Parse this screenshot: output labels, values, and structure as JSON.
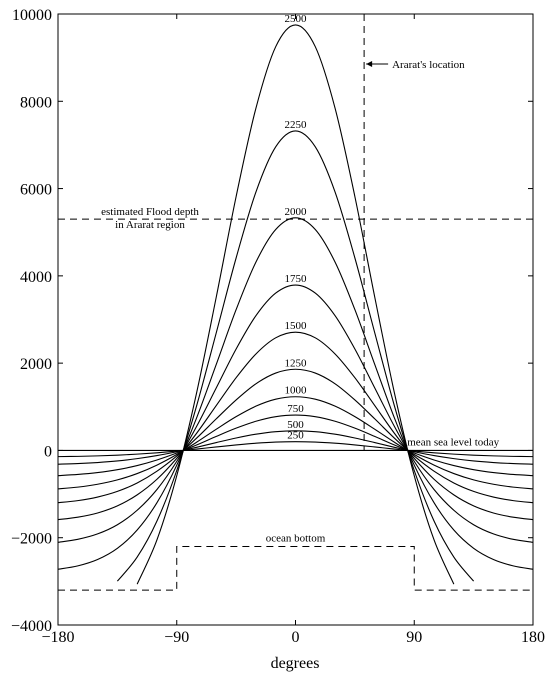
{
  "chart_data": {
    "type": "line",
    "xlabel": "degrees",
    "color": "#000000",
    "x": [
      -180,
      -165,
      -150,
      -135,
      -120,
      -105,
      -90,
      -75,
      -60,
      -45,
      -30,
      -15,
      0,
      15,
      30,
      45,
      60,
      75,
      90,
      105,
      120,
      135,
      150,
      165,
      180
    ],
    "series": [
      {
        "name": "250",
        "values": [
          -142,
          -136,
          -125,
          -109,
          -85,
          -54,
          -15,
          31,
          80,
          126,
          165,
          191,
          200,
          191,
          165,
          126,
          80,
          31,
          -15,
          -54,
          -85,
          -109,
          -125,
          -136,
          -142
        ]
      },
      {
        "name": "500",
        "values": [
          -315,
          -301,
          -277,
          -241,
          -188,
          -118,
          -30,
          72,
          181,
          285,
          372,
          430,
          450,
          430,
          372,
          285,
          181,
          72,
          -30,
          -118,
          -188,
          -241,
          -277,
          -301,
          -315
        ]
      },
      {
        "name": "750",
        "values": [
          -578,
          -551,
          -508,
          -442,
          -347,
          -219,
          -60,
          124,
          322,
          510,
          668,
          773,
          810,
          773,
          668,
          510,
          322,
          124,
          -60,
          -219,
          -347,
          -442,
          -508,
          -551,
          -578
        ]
      },
      {
        "name": "1000",
        "values": [
          -881,
          -841,
          -775,
          -675,
          -530,
          -336,
          -94,
          187,
          487,
          774,
          1014,
          1174,
          1230,
          1174,
          1014,
          774,
          487,
          187,
          -94,
          -336,
          -530,
          -675,
          -775,
          -841,
          -881
        ]
      },
      {
        "name": "1250",
        "values": [
          -1198,
          -1150,
          -1068,
          -939,
          -746,
          -476,
          -130,
          280,
          725,
          1157,
          1527,
          1773,
          1860,
          1773,
          1527,
          1157,
          725,
          280,
          -130,
          -476,
          -746,
          -939,
          -1068,
          -1150,
          -1198
        ]
      },
      {
        "name": "1500",
        "values": [
          -1586,
          -1530,
          -1433,
          -1270,
          -1018,
          -661,
          -183,
          391,
          1031,
          1666,
          2210,
          2580,
          2710,
          2580,
          2210,
          1666,
          1031,
          391,
          -183,
          -661,
          -1018,
          -1270,
          -1433,
          -1530,
          -1586
        ]
      },
      {
        "name": "1750",
        "values": [
          -2106,
          -2037,
          -1913,
          -1703,
          -1371,
          -895,
          -251,
          548,
          1436,
          2324,
          3087,
          3605,
          3790,
          3605,
          3087,
          2324,
          1436,
          548,
          -251,
          -895,
          -1371,
          -1703,
          -1913,
          -2037,
          -2106
        ]
      },
      {
        "name": "2000",
        "values": [
          -2723,
          -2645,
          -2499,
          -2242,
          -1824,
          -1198,
          -338,
          742,
          1976,
          3227,
          4315,
          5062,
          5330,
          5062,
          4315,
          3227,
          1976,
          742,
          -338,
          -1198,
          -1824,
          -2242,
          -2499,
          -2645,
          -2723
        ]
      },
      {
        "name": "2250",
        "values": [
          null,
          null,
          null,
          -2995,
          -2444,
          -1617,
          -460,
          1017,
          2703,
          4411,
          5920,
          6956,
          7320,
          6956,
          5920,
          4411,
          2703,
          1017,
          -460,
          -1617,
          -2444,
          -2995,
          null,
          null,
          null
        ]
      },
      {
        "name": "2500",
        "values": [
          null,
          null,
          null,
          null,
          -3065,
          -2049,
          -581,
          1314,
          3523,
          5817,
          7841,
          9251,
          9750,
          9251,
          7841,
          5817,
          3523,
          1314,
          -581,
          -2049,
          -3065,
          null,
          null,
          null,
          null
        ]
      }
    ],
    "xlim": [
      -180,
      180
    ],
    "xticks": [
      {
        "value": -180,
        "label": "−180"
      },
      {
        "value": -90,
        "label": "−90"
      },
      0,
      90,
      180
    ],
    "ylim": [
      -4000,
      10000
    ],
    "yticks": [
      {
        "value": -4000,
        "label": "−4000"
      },
      {
        "value": -2000,
        "label": "−2000"
      },
      0,
      2000,
      4000,
      6000,
      8000,
      10000
    ],
    "sea_level": {
      "value": 0,
      "label": "mean sea level today"
    },
    "flood_depth": {
      "value": 5300,
      "label": [
        "estimated Flood depth",
        "in Ararat region"
      ]
    },
    "ararat": {
      "x": 52,
      "label": "Ararat's location"
    },
    "ocean_bottom": {
      "label": "ocean bottom",
      "x": [
        -180,
        -90,
        -90,
        90,
        90,
        180
      ],
      "values": [
        -3200,
        -3200,
        -2200,
        -2200,
        -3200,
        -3200
      ]
    }
  }
}
